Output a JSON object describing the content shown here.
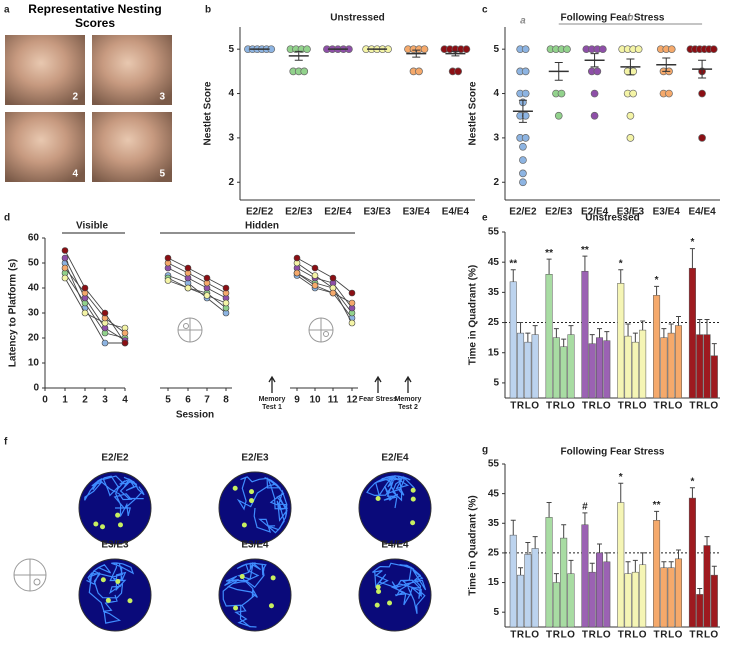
{
  "panel_letters": [
    "a",
    "b",
    "c",
    "d",
    "e",
    "f",
    "g"
  ],
  "nesting_photos": {
    "title": "Representative Nesting Scores",
    "labels": [
      "2",
      "3",
      "4",
      "5"
    ]
  },
  "swim_paths": {
    "labels": [
      "E2/E2",
      "E2/E3",
      "E2/E4",
      "E3/E3",
      "E3/E4",
      "E4/E4"
    ]
  },
  "chart_data": [
    {
      "type": "dot",
      "title": "Unstressed",
      "y_label": "Nestlet Score",
      "categories": [
        "E2/E2",
        "E2/E3",
        "E2/E4",
        "E3/E3",
        "E3/E4",
        "E4/E4"
      ],
      "colors": [
        "#8db4e2",
        "#92d28c",
        "#8e4fa8",
        "#f4f4a6",
        "#f5a96b",
        "#8b0f14"
      ],
      "points": [
        [
          5,
          5,
          5,
          5,
          5,
          5
        ],
        [
          5,
          5,
          5,
          5,
          4.5,
          4.5,
          4.5
        ],
        [
          5,
          5,
          5,
          5,
          5
        ],
        [
          5,
          5,
          5,
          5,
          5
        ],
        [
          5,
          5,
          5,
          5,
          4.5,
          4.5
        ],
        [
          5,
          5,
          5,
          5,
          5,
          4.5,
          4.5
        ]
      ],
      "means": [
        5,
        4.85,
        5,
        5,
        4.9,
        4.9
      ],
      "sems": [
        0,
        0.1,
        0,
        0,
        0.08,
        0.05
      ],
      "ylim": [
        1.6,
        5.5
      ],
      "yticks": [
        2,
        3,
        4,
        5
      ]
    },
    {
      "type": "dot",
      "title": "Following Fear Stress",
      "y_label": "Nestlet Score",
      "categories": [
        "E2/E2",
        "E2/E3",
        "E2/E4",
        "E3/E3",
        "E3/E4",
        "E4/E4"
      ],
      "colors": [
        "#8db4e2",
        "#92d28c",
        "#8e4fa8",
        "#f4f4a6",
        "#f5a96b",
        "#8b0f14"
      ],
      "points": [
        [
          5,
          5,
          4.5,
          4.5,
          4,
          4,
          3.8,
          3.5,
          3.5,
          3,
          3,
          2.8,
          2.5,
          2.2,
          2
        ],
        [
          5,
          5,
          5,
          5,
          4,
          4,
          3.5
        ],
        [
          5,
          5,
          5,
          5,
          4.5,
          4.5,
          4,
          3.5
        ],
        [
          5,
          5,
          5,
          5,
          4.5,
          4.5,
          4,
          4,
          3.5,
          3
        ],
        [
          5,
          5,
          5,
          4.5,
          4.5,
          4,
          4
        ],
        [
          5,
          5,
          5,
          5,
          5,
          5,
          4.5,
          4,
          3
        ]
      ],
      "means": [
        3.6,
        4.5,
        4.75,
        4.6,
        4.65,
        4.55
      ],
      "sems": [
        0.25,
        0.2,
        0.15,
        0.18,
        0.15,
        0.2
      ],
      "annotations": [
        "a",
        null,
        null,
        null,
        null,
        null
      ],
      "bracket_label": "b",
      "ylim": [
        1.6,
        5.5
      ],
      "yticks": [
        2,
        3,
        4,
        5
      ]
    },
    {
      "type": "line",
      "y_label": "Latency to Platform (s)",
      "x_label": "Session",
      "section_labels": [
        "Visible",
        "Hidden"
      ],
      "annotations": [
        "Memory Test 1",
        "Fear Stress",
        "Memory Test 2"
      ],
      "x": [
        1,
        2,
        3,
        4,
        5,
        6,
        7,
        8,
        9,
        10,
        11,
        12
      ],
      "xlim": [
        0,
        12
      ],
      "xticks": [
        0,
        1,
        2,
        3,
        4,
        5,
        6,
        7,
        8,
        9,
        10,
        11,
        12
      ],
      "ylim": [
        0,
        60
      ],
      "yticks": [
        0,
        10,
        20,
        30,
        40,
        50,
        60
      ],
      "series": [
        {
          "color": "#8db4e2",
          "values": [
            50,
            32,
            18,
            18,
            45,
            42,
            36,
            30,
            45,
            40,
            38,
            28
          ]
        },
        {
          "color": "#92d28c",
          "values": [
            46,
            34,
            22,
            20,
            44,
            40,
            38,
            32,
            46,
            42,
            40,
            30
          ]
        },
        {
          "color": "#8e4fa8",
          "values": [
            52,
            36,
            24,
            19,
            48,
            44,
            40,
            36,
            48,
            44,
            42,
            32
          ]
        },
        {
          "color": "#f4f4a6",
          "values": [
            44,
            30,
            26,
            24,
            43,
            40,
            37,
            34,
            50,
            45,
            40,
            26
          ]
        },
        {
          "color": "#f5a96b",
          "values": [
            48,
            38,
            28,
            22,
            50,
            46,
            42,
            38,
            46,
            41,
            38,
            34
          ]
        },
        {
          "color": "#8b0f14",
          "values": [
            55,
            40,
            30,
            18,
            52,
            48,
            44,
            40,
            52,
            48,
            44,
            38
          ]
        }
      ]
    },
    {
      "type": "bar",
      "title": "Unstressed",
      "y_label": "Time in Quadrant (%)",
      "bar_labels": [
        "T",
        "R",
        "L",
        "O"
      ],
      "ylim": [
        0,
        55
      ],
      "yticks": [
        5,
        15,
        25,
        35,
        45,
        55
      ],
      "reference_line": 25,
      "annotations": [
        "**",
        "**",
        "**",
        "*",
        "*",
        "*"
      ],
      "series": [
        {
          "color": "#bcd3ee",
          "values": [
            38.5,
            21.5,
            18.5,
            21
          ],
          "errors": [
            4,
            3.5,
            3,
            3
          ]
        },
        {
          "color": "#a8dca3",
          "values": [
            41,
            20,
            17,
            21
          ],
          "errors": [
            5,
            3,
            2.5,
            3
          ]
        },
        {
          "color": "#9b62b3",
          "values": [
            42,
            18,
            20,
            19
          ],
          "errors": [
            5,
            3,
            3,
            3
          ]
        },
        {
          "color": "#f5f5b5",
          "values": [
            38,
            20.5,
            18.5,
            22.5
          ],
          "errors": [
            4.5,
            4,
            3,
            3
          ]
        },
        {
          "color": "#f5a96b",
          "values": [
            34,
            20,
            21.5,
            24
          ],
          "errors": [
            3,
            3,
            3,
            3
          ]
        },
        {
          "color": "#9e1a1f",
          "values": [
            43,
            21,
            21,
            14
          ],
          "errors": [
            6.5,
            5,
            5,
            4
          ]
        }
      ]
    },
    {
      "type": "bar",
      "title": "Following Fear Stress",
      "y_label": "Time in Quadrant (%)",
      "bar_labels": [
        "T",
        "R",
        "L",
        "O"
      ],
      "ylim": [
        0,
        55
      ],
      "yticks": [
        5,
        15,
        25,
        35,
        45,
        55
      ],
      "reference_line": 25,
      "annotations": [
        null,
        null,
        "#",
        "*",
        "**",
        "*"
      ],
      "series": [
        {
          "color": "#bcd3ee",
          "values": [
            31,
            17.5,
            24.5,
            26.5
          ],
          "errors": [
            5,
            2.5,
            4,
            4
          ]
        },
        {
          "color": "#a8dca3",
          "values": [
            37,
            15,
            30,
            18
          ],
          "errors": [
            5,
            3,
            4.5,
            4.5
          ]
        },
        {
          "color": "#9b62b3",
          "values": [
            34.5,
            18.5,
            25,
            22
          ],
          "errors": [
            4,
            3,
            3,
            3
          ]
        },
        {
          "color": "#f5f5b5",
          "values": [
            42,
            18,
            18.5,
            21
          ],
          "errors": [
            6.5,
            4,
            4,
            4
          ]
        },
        {
          "color": "#f5a96b",
          "values": [
            36,
            20,
            20,
            23
          ],
          "errors": [
            3,
            2,
            2,
            3
          ]
        },
        {
          "color": "#9e1a1f",
          "values": [
            43.5,
            11,
            27.5,
            17.5
          ],
          "errors": [
            3.5,
            2,
            3,
            3
          ]
        }
      ]
    }
  ]
}
